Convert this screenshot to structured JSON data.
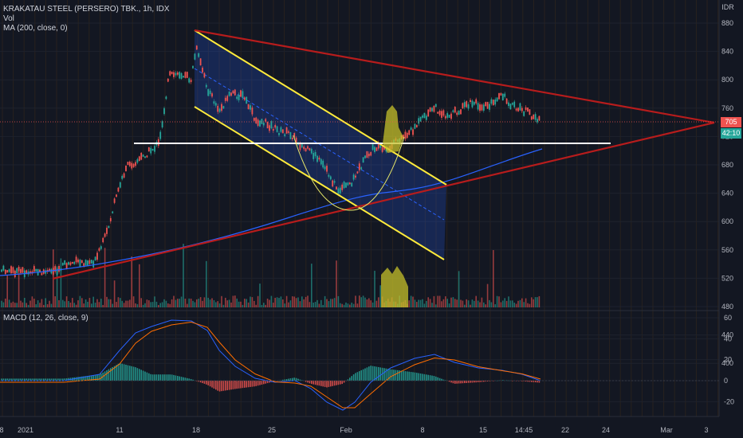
{
  "symbol": {
    "name": "KRAKATAU STEEL (PERSERO) TBK.",
    "interval": "1h",
    "exchange": "IDX",
    "title_line": "KRAKATAU STEEL (PERSERO) TBK., 1h, IDX"
  },
  "indicators": {
    "volume_label": "Vol",
    "ma_label": "MA (200, close, 0)",
    "macd_label": "MACD (12, 26, close, 9)"
  },
  "price_axis": {
    "currency": "IDR",
    "ticks": [
      "880",
      "840",
      "800",
      "760",
      "720",
      "680",
      "640",
      "600",
      "560",
      "520",
      "480",
      "440",
      "400"
    ]
  },
  "macd_axis": {
    "ticks": [
      "60",
      "40",
      "20",
      "0",
      "-20"
    ]
  },
  "time_axis": {
    "labels": [
      "8",
      "2021",
      "11",
      "18",
      "25",
      "Feb",
      "8",
      "15",
      "14:45",
      "22",
      "24",
      "Mar",
      "3"
    ]
  },
  "price_tags": {
    "last_price": "705",
    "countdown": "42:10",
    "last_color": "#ef5350",
    "countdown_color": "#26a69a"
  },
  "colors": {
    "background": "#131722",
    "up": "#26a69a",
    "down": "#ef5350",
    "ma": "#2962ff",
    "triangle": "#b71c1c",
    "channel": "#ffeb3b",
    "support": "#ffffff",
    "annotation": "#c6c02a"
  }
}
